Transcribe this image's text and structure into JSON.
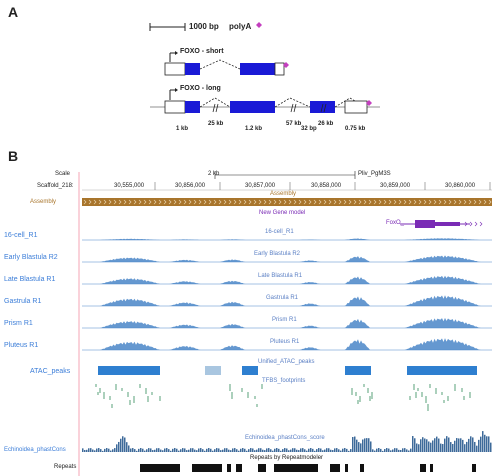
{
  "panel_a": {
    "letter": "A",
    "scale_label": "1000 bp",
    "polya_label": "polyA",
    "short_label": "FOXO - short",
    "long_label": "FOXO - long",
    "sizes": [
      "1 kb",
      "25 kb",
      "1.2 kb",
      "57 kb",
      "32 bp",
      "26 kb",
      "0.75 kb"
    ]
  },
  "panel_b": {
    "letter": "B",
    "scale_row_label": "Scale",
    "scaffold_label": "Scaffold_218:",
    "scale_bar_label": "2 kb",
    "assembly_id": "Pliv_PgM3S",
    "positions": [
      "30,555,000",
      "30,856,000",
      "30,857,000",
      "30,858,000",
      "30,859,000",
      "30,860,000"
    ],
    "assembly_label": "Assembly",
    "assembly_title": "Assembly",
    "gene_model_title": "New Gene model",
    "gene_label": "FoxO_",
    "tracks": [
      {
        "left": "16-cell_R1",
        "title": "16-cell_R1"
      },
      {
        "left": "Early Blastula R2",
        "title": "Early Blastula R2"
      },
      {
        "left": "Late Blastula R1",
        "title": "Late Blastula R1"
      },
      {
        "left": "Gastrula R1",
        "title": "Gastrula R1"
      },
      {
        "left": "Prism R1",
        "title": "Prism R1"
      },
      {
        "left": "Pluteus R1",
        "title": "Pluteus R1"
      }
    ],
    "peaks_left": "ATAC_peaks",
    "peaks_title": "Unified_ATAC_peaks",
    "tfbs_title": "TFBS_footprints",
    "phastcons_left": "Echinoidea_phastCons",
    "phastcons_title": "Echinoidea_phastCons_score",
    "repeats_title": "Repeats by Repeatmodeler",
    "repeats_left": "Repeats"
  },
  "colors": {
    "exon": "#1a1ad6",
    "polya": "#c43fbf",
    "assembly_bar": "#a8752c",
    "track_signal": "#4a86c8",
    "peak_dark": "#2e7fd0",
    "peak_light": "#a9c6e0",
    "tfbs": "#2e8b57",
    "gene_purple": "#7a2bb5",
    "conservation": "#3d6a9a"
  }
}
